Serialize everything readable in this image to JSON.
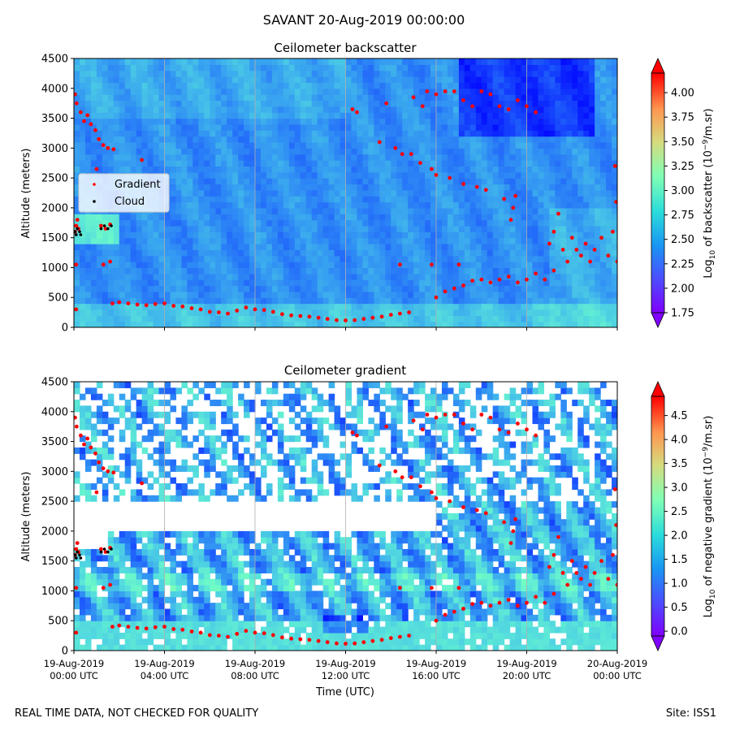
{
  "suptitle": "SAVANT 20-Aug-2019 00:00:00",
  "footer": {
    "left": "REAL TIME DATA, NOT CHECKED FOR QUALITY",
    "right": "Site: ISS1"
  },
  "colors": {
    "gradient_marker": "#ff0000",
    "cloud_marker": "#000000",
    "grid": "#b0b0b0"
  },
  "chart_data": [
    {
      "type": "heatmap",
      "title": "Ceilometer backscatter",
      "ylabel": "Altitude (meters)",
      "xlabel": "",
      "ylim": [
        0,
        4500
      ],
      "yticks": [
        0,
        500,
        1000,
        1500,
        2000,
        2500,
        3000,
        3500,
        4000,
        4500
      ],
      "xlim_hours": [
        0,
        24
      ],
      "xtick_hours": [
        0,
        4,
        8,
        12,
        16,
        20,
        24
      ],
      "xtick_labels": [
        "",
        "",
        "",
        "",
        "",
        "",
        ""
      ],
      "grid": "vertical",
      "colorbar": {
        "label": "Log10 of backscatter (10^-9/m.sr)",
        "label_main": "Log",
        "label_sub": "10",
        "label_rest": " of backscatter (10",
        "label_sup": "−9",
        "label_end": "/m.sr)",
        "min": 1.75,
        "max": 4.2,
        "ticks": [
          "1.75",
          "2.00",
          "2.25",
          "2.50",
          "2.75",
          "3.00",
          "3.25",
          "3.50",
          "3.75",
          "4.00"
        ],
        "tick_values": [
          1.75,
          2.0,
          2.25,
          2.5,
          2.75,
          3.0,
          3.25,
          3.5,
          3.75,
          4.0
        ],
        "extend": "both",
        "colormap": "rainbow"
      },
      "legend": {
        "placement": "upper-left",
        "entries": [
          {
            "label": "Gradient",
            "color": "#ff0000"
          },
          {
            "label": "Cloud",
            "color": "#000000"
          }
        ]
      },
      "gradient_points": [
        [
          0.05,
          3900
        ],
        [
          0.12,
          3750
        ],
        [
          0.3,
          3600
        ],
        [
          0.45,
          3450
        ],
        [
          0.6,
          3550
        ],
        [
          0.75,
          3400
        ],
        [
          0.95,
          3300
        ],
        [
          1.1,
          3150
        ],
        [
          1.3,
          3050
        ],
        [
          1.5,
          3000
        ],
        [
          1.75,
          2980
        ],
        [
          1.0,
          2650
        ],
        [
          3.0,
          2800
        ],
        [
          0.1,
          1050
        ],
        [
          1.3,
          1050
        ],
        [
          1.6,
          1100
        ],
        [
          0.05,
          1600
        ],
        [
          0.1,
          1700
        ],
        [
          0.15,
          1800
        ],
        [
          0.2,
          1650
        ],
        [
          1.2,
          1700
        ],
        [
          1.4,
          1650
        ],
        [
          1.6,
          1720
        ],
        [
          0.1,
          300
        ],
        [
          1.7,
          400
        ],
        [
          2.0,
          420
        ],
        [
          2.4,
          400
        ],
        [
          2.8,
          380
        ],
        [
          3.2,
          370
        ],
        [
          3.6,
          390
        ],
        [
          4.0,
          400
        ],
        [
          4.4,
          360
        ],
        [
          4.8,
          350
        ],
        [
          5.2,
          320
        ],
        [
          5.6,
          300
        ],
        [
          6.0,
          260
        ],
        [
          6.4,
          250
        ],
        [
          6.8,
          230
        ],
        [
          7.2,
          280
        ],
        [
          7.6,
          330
        ],
        [
          8.0,
          300
        ],
        [
          8.4,
          290
        ],
        [
          8.8,
          260
        ],
        [
          9.2,
          220
        ],
        [
          9.6,
          200
        ],
        [
          10.0,
          190
        ],
        [
          10.4,
          180
        ],
        [
          10.8,
          160
        ],
        [
          11.2,
          140
        ],
        [
          11.6,
          120
        ],
        [
          12.0,
          115
        ],
        [
          12.4,
          120
        ],
        [
          12.8,
          140
        ],
        [
          13.2,
          160
        ],
        [
          13.6,
          180
        ],
        [
          14.0,
          210
        ],
        [
          14.4,
          230
        ],
        [
          14.8,
          250
        ],
        [
          12.3,
          3650
        ],
        [
          12.5,
          3600
        ],
        [
          13.8,
          3750
        ],
        [
          13.5,
          3100
        ],
        [
          14.2,
          3000
        ],
        [
          14.5,
          2900
        ],
        [
          14.9,
          2900
        ],
        [
          15.3,
          2750
        ],
        [
          15.8,
          2650
        ],
        [
          15.0,
          3850
        ],
        [
          15.4,
          3700
        ],
        [
          15.6,
          3950
        ],
        [
          16.0,
          3900
        ],
        [
          16.4,
          3950
        ],
        [
          16.8,
          3950
        ],
        [
          17.2,
          3800
        ],
        [
          17.6,
          3700
        ],
        [
          18.0,
          3950
        ],
        [
          18.4,
          3900
        ],
        [
          18.8,
          3700
        ],
        [
          19.2,
          3650
        ],
        [
          19.6,
          3800
        ],
        [
          20.0,
          3700
        ],
        [
          20.4,
          3600
        ],
        [
          16.0,
          2550
        ],
        [
          16.6,
          2500
        ],
        [
          17.2,
          2400
        ],
        [
          17.8,
          2350
        ],
        [
          18.2,
          2300
        ],
        [
          19.0,
          2150
        ],
        [
          16.0,
          500
        ],
        [
          16.4,
          600
        ],
        [
          16.8,
          650
        ],
        [
          17.2,
          700
        ],
        [
          17.6,
          780
        ],
        [
          18.0,
          800
        ],
        [
          18.4,
          750
        ],
        [
          18.8,
          800
        ],
        [
          19.2,
          850
        ],
        [
          19.6,
          750
        ],
        [
          20.0,
          800
        ],
        [
          20.4,
          900
        ],
        [
          20.8,
          800
        ],
        [
          21.2,
          950
        ],
        [
          14.4,
          1050
        ],
        [
          15.8,
          1050
        ],
        [
          17.0,
          1050
        ],
        [
          19.3,
          1800
        ],
        [
          19.4,
          2000
        ],
        [
          19.5,
          2200
        ],
        [
          21.0,
          1400
        ],
        [
          21.2,
          1600
        ],
        [
          21.4,
          1900
        ],
        [
          21.6,
          1300
        ],
        [
          21.8,
          1100
        ],
        [
          22.0,
          1500
        ],
        [
          22.2,
          1300
        ],
        [
          22.4,
          1200
        ],
        [
          22.6,
          1400
        ],
        [
          22.8,
          1100
        ],
        [
          23.0,
          1300
        ],
        [
          23.3,
          1500
        ],
        [
          23.6,
          1200
        ],
        [
          23.9,
          2700
        ],
        [
          23.95,
          2100
        ],
        [
          23.8,
          1600
        ],
        [
          24.0,
          1100
        ]
      ],
      "cloud_points": [
        [
          0.05,
          1600
        ],
        [
          0.1,
          1550
        ],
        [
          0.15,
          1650
        ],
        [
          0.25,
          1600
        ],
        [
          0.3,
          1550
        ],
        [
          1.2,
          1650
        ],
        [
          1.35,
          1700
        ],
        [
          1.5,
          1650
        ],
        [
          1.65,
          1700
        ]
      ]
    },
    {
      "type": "heatmap",
      "title": "Ceilometer gradient",
      "ylabel": "Altitude (meters)",
      "xlabel": "Time (UTC)",
      "ylim": [
        0,
        4500
      ],
      "yticks": [
        0,
        500,
        1000,
        1500,
        2000,
        2500,
        3000,
        3500,
        4000,
        4500
      ],
      "xlim_hours": [
        0,
        24
      ],
      "xtick_hours": [
        0,
        4,
        8,
        12,
        16,
        20,
        24
      ],
      "xtick_labels": [
        [
          "19-Aug-2019",
          "00:00 UTC"
        ],
        [
          "19-Aug-2019",
          "04:00 UTC"
        ],
        [
          "19-Aug-2019",
          "08:00 UTC"
        ],
        [
          "19-Aug-2019",
          "12:00 UTC"
        ],
        [
          "19-Aug-2019",
          "16:00 UTC"
        ],
        [
          "19-Aug-2019",
          "20:00 UTC"
        ],
        [
          "20-Aug-2019",
          "00:00 UTC"
        ]
      ],
      "grid": "vertical",
      "colorbar": {
        "label": "Log10 of negative gradient (10^-9/m.sr)",
        "label_main": "Log",
        "label_sub": "10",
        "label_rest": " of negative gradient (10",
        "label_sup": "−9",
        "label_end": "/m.sr)",
        "min": -0.1,
        "max": 4.9,
        "ticks": [
          "0.0",
          "0.5",
          "1.0",
          "1.5",
          "2.0",
          "2.5",
          "3.0",
          "3.5",
          "4.0",
          "4.5"
        ],
        "tick_values": [
          0.0,
          0.5,
          1.0,
          1.5,
          2.0,
          2.5,
          3.0,
          3.5,
          4.0,
          4.5
        ],
        "extend": "both",
        "colormap": "rainbow"
      }
    }
  ]
}
